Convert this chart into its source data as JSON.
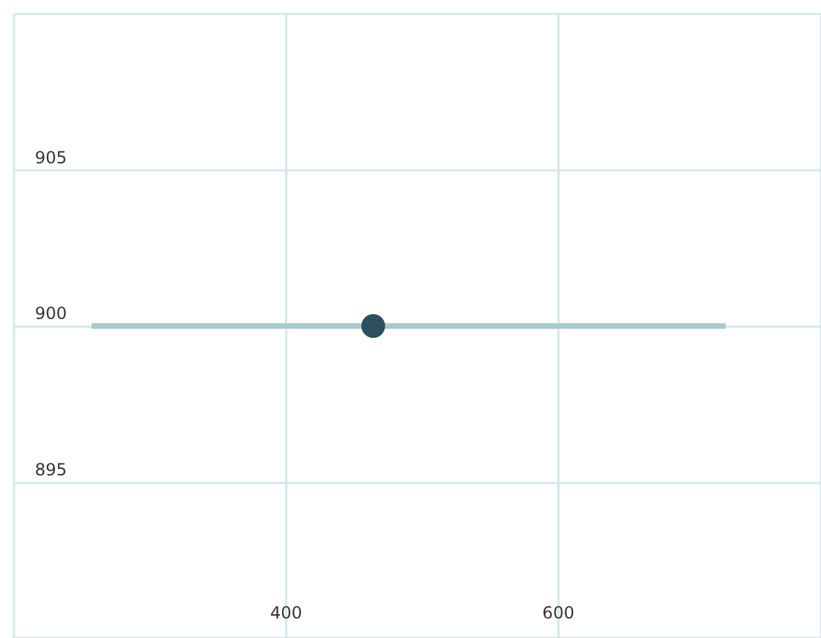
{
  "chart_data": {
    "type": "scatter",
    "x": [
      464
    ],
    "values": [
      900
    ],
    "xerrors": [
      [
        257,
        723
      ]
    ],
    "color": "#2d4e5e",
    "marker": "circle",
    "xlim": [
      200,
      793
    ],
    "ylim": [
      890,
      910
    ],
    "xticks": [
      400,
      600
    ],
    "yticks": [
      895,
      900,
      905
    ],
    "grid": true
  }
}
